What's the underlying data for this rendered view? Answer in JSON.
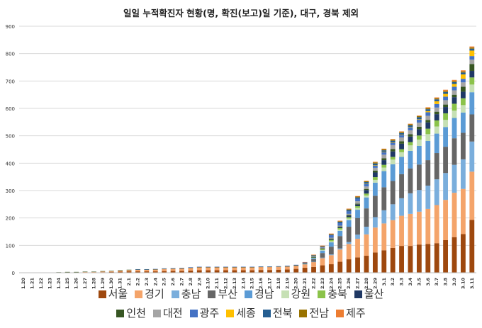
{
  "chart_data": {
    "type": "bar",
    "stacked": true,
    "title": "일일 누적확진자 현황(명, 확진(보고)일 기준), 대구, 경북 제외",
    "xlabel": "",
    "ylabel": "",
    "ylim": [
      0,
      900
    ],
    "yticks": [
      0,
      100,
      200,
      300,
      400,
      500,
      600,
      700,
      800,
      900
    ],
    "grid": true,
    "legend_position": "bottom",
    "categories": [
      "1.20",
      "1.21",
      "1.22",
      "1.23",
      "1.24",
      "1.25",
      "1.26",
      "1.27",
      "1.28",
      "1.29",
      "1.30",
      "1.31",
      "2.1",
      "2.2",
      "2.3",
      "2.4",
      "2.5",
      "2.6",
      "2.7",
      "2.8",
      "2.9",
      "2.10",
      "2.11",
      "2.12",
      "2.13",
      "2.14",
      "2.15",
      "2.16",
      "2.17",
      "2.18",
      "2.19",
      "2.20",
      "2.21",
      "2.22",
      "2.23",
      "2.24",
      "2.25",
      "2.26",
      "2.27",
      "2.28",
      "2.29",
      "3.1",
      "3.2",
      "3.3",
      "3.4",
      "3.5",
      "3.6",
      "3.7",
      "3.8",
      "3.9",
      "3.10",
      "3.11"
    ],
    "series": [
      {
        "name": "서울",
        "color": "#9e480e",
        "values": [
          0,
          0,
          0,
          0,
          1,
          1,
          1,
          1,
          1,
          2,
          3,
          4,
          5,
          5,
          5,
          5,
          6,
          7,
          7,
          8,
          9,
          9,
          9,
          9,
          9,
          9,
          9,
          10,
          10,
          11,
          12,
          14,
          18,
          21,
          27,
          31,
          40,
          49,
          56,
          62,
          74,
          82,
          91,
          98,
          98,
          103,
          105,
          108,
          119,
          130,
          141,
          193
        ]
      },
      {
        "name": "경기",
        "color": "#f4a46a",
        "values": [
          0,
          0,
          0,
          0,
          0,
          1,
          1,
          2,
          2,
          3,
          3,
          4,
          5,
          6,
          6,
          7,
          8,
          8,
          9,
          10,
          11,
          11,
          11,
          11,
          11,
          11,
          11,
          11,
          11,
          11,
          11,
          12,
          13,
          18,
          26,
          33,
          45,
          56,
          68,
          78,
          91,
          98,
          101,
          110,
          117,
          120,
          128,
          139,
          147,
          162,
          165,
          176
        ]
      },
      {
        "name": "충남",
        "color": "#7aaedc",
        "values": [
          0,
          0,
          0,
          0,
          0,
          0,
          0,
          0,
          0,
          0,
          0,
          0,
          0,
          0,
          0,
          0,
          0,
          0,
          0,
          0,
          0,
          0,
          0,
          0,
          0,
          0,
          0,
          0,
          0,
          0,
          0,
          0,
          1,
          1,
          2,
          3,
          4,
          7,
          15,
          28,
          38,
          48,
          58,
          64,
          75,
          79,
          85,
          94,
          98,
          102,
          108,
          110
        ]
      },
      {
        "name": "부산",
        "color": "#666666",
        "values": [
          0,
          0,
          0,
          0,
          0,
          0,
          0,
          0,
          0,
          0,
          0,
          0,
          0,
          0,
          0,
          0,
          0,
          0,
          0,
          0,
          0,
          0,
          0,
          0,
          0,
          0,
          0,
          0,
          0,
          0,
          0,
          0,
          1,
          10,
          17,
          28,
          45,
          56,
          61,
          67,
          78,
          84,
          85,
          88,
          91,
          93,
          93,
          96,
          96,
          97,
          97,
          99
        ]
      },
      {
        "name": "경남",
        "color": "#5b9bd5",
        "values": [
          0,
          0,
          0,
          0,
          0,
          0,
          0,
          0,
          0,
          0,
          0,
          0,
          0,
          0,
          0,
          0,
          0,
          0,
          0,
          0,
          0,
          0,
          0,
          0,
          0,
          0,
          0,
          0,
          0,
          0,
          0,
          0,
          2,
          4,
          9,
          16,
          19,
          24,
          30,
          40,
          48,
          59,
          61,
          63,
          64,
          68,
          70,
          71,
          72,
          74,
          74,
          81
        ]
      },
      {
        "name": "강원",
        "color": "#c6e0b4",
        "values": [
          0,
          0,
          0,
          0,
          0,
          0,
          0,
          0,
          0,
          0,
          0,
          0,
          0,
          0,
          0,
          0,
          0,
          0,
          0,
          0,
          0,
          0,
          0,
          0,
          0,
          0,
          0,
          0,
          0,
          0,
          0,
          0,
          0,
          1,
          2,
          4,
          5,
          6,
          7,
          7,
          10,
          13,
          17,
          17,
          20,
          23,
          25,
          26,
          26,
          27,
          27,
          28
        ]
      },
      {
        "name": "충북",
        "color": "#8bc34a",
        "values": [
          0,
          0,
          0,
          0,
          0,
          0,
          0,
          0,
          0,
          0,
          0,
          0,
          0,
          0,
          0,
          0,
          0,
          0,
          0,
          0,
          0,
          0,
          0,
          0,
          0,
          0,
          0,
          0,
          0,
          0,
          0,
          0,
          0,
          1,
          4,
          5,
          5,
          5,
          6,
          7,
          10,
          10,
          10,
          11,
          12,
          15,
          20,
          22,
          24,
          25,
          25,
          26
        ]
      },
      {
        "name": "울산",
        "color": "#1f3864",
        "values": [
          0,
          0,
          0,
          0,
          0,
          0,
          0,
          0,
          0,
          0,
          0,
          0,
          0,
          0,
          0,
          0,
          0,
          0,
          0,
          0,
          0,
          0,
          0,
          0,
          0,
          0,
          0,
          0,
          0,
          0,
          0,
          0,
          0,
          1,
          1,
          3,
          3,
          5,
          6,
          13,
          17,
          17,
          20,
          20,
          20,
          23,
          23,
          23,
          23,
          24,
          24,
          24
        ]
      },
      {
        "name": "인천",
        "color": "#375623",
        "values": [
          1,
          1,
          1,
          1,
          1,
          1,
          1,
          1,
          1,
          1,
          1,
          1,
          1,
          1,
          1,
          1,
          1,
          1,
          1,
          1,
          1,
          1,
          1,
          1,
          1,
          1,
          1,
          1,
          1,
          1,
          1,
          1,
          1,
          1,
          1,
          2,
          3,
          3,
          3,
          4,
          7,
          7,
          9,
          9,
          9,
          9,
          9,
          9,
          9,
          9,
          18,
          25
        ]
      },
      {
        "name": "대전",
        "color": "#a5a5a5",
        "values": [
          0,
          0,
          0,
          0,
          0,
          0,
          0,
          0,
          0,
          0,
          0,
          0,
          0,
          0,
          0,
          0,
          0,
          0,
          0,
          0,
          0,
          0,
          0,
          0,
          0,
          0,
          0,
          0,
          0,
          0,
          0,
          0,
          0,
          3,
          3,
          3,
          3,
          4,
          9,
          9,
          10,
          13,
          14,
          14,
          14,
          15,
          15,
          15,
          16,
          16,
          16,
          16
        ]
      },
      {
        "name": "광주",
        "color": "#4472c4",
        "values": [
          0,
          0,
          0,
          0,
          0,
          0,
          0,
          0,
          0,
          0,
          0,
          0,
          0,
          1,
          1,
          1,
          1,
          1,
          1,
          1,
          1,
          1,
          1,
          1,
          1,
          1,
          1,
          1,
          1,
          1,
          2,
          2,
          2,
          2,
          3,
          9,
          9,
          9,
          9,
          9,
          9,
          9,
          9,
          9,
          11,
          12,
          13,
          13,
          13,
          13,
          13,
          13
        ]
      },
      {
        "name": "세종",
        "color": "#ffc000",
        "values": [
          0,
          0,
          0,
          0,
          0,
          0,
          0,
          0,
          0,
          0,
          0,
          0,
          0,
          0,
          0,
          0,
          0,
          0,
          0,
          0,
          0,
          0,
          0,
          0,
          0,
          0,
          0,
          0,
          0,
          0,
          0,
          0,
          0,
          0,
          0,
          0,
          0,
          0,
          0,
          1,
          1,
          1,
          1,
          1,
          1,
          1,
          4,
          10,
          10,
          10,
          16,
          20
        ]
      },
      {
        "name": "전북",
        "color": "#255e91",
        "values": [
          0,
          0,
          0,
          0,
          0,
          0,
          0,
          0,
          0,
          0,
          0,
          0,
          0,
          0,
          0,
          0,
          0,
          0,
          0,
          0,
          0,
          0,
          0,
          0,
          0,
          0,
          0,
          0,
          0,
          0,
          0,
          0,
          0,
          1,
          1,
          2,
          5,
          5,
          5,
          6,
          6,
          6,
          6,
          6,
          6,
          7,
          7,
          7,
          7,
          7,
          7,
          7
        ]
      },
      {
        "name": "전남",
        "color": "#997300",
        "values": [
          0,
          0,
          0,
          0,
          0,
          0,
          0,
          0,
          0,
          0,
          0,
          0,
          0,
          0,
          0,
          0,
          0,
          0,
          0,
          0,
          0,
          0,
          0,
          0,
          0,
          0,
          0,
          0,
          0,
          0,
          0,
          0,
          0,
          1,
          1,
          2,
          2,
          3,
          3,
          3,
          4,
          4,
          4,
          4,
          4,
          4,
          4,
          4,
          4,
          4,
          4,
          4
        ]
      },
      {
        "name": "제주",
        "color": "#ed7d31",
        "values": [
          0,
          0,
          0,
          0,
          0,
          0,
          0,
          0,
          0,
          0,
          0,
          0,
          0,
          0,
          0,
          0,
          0,
          0,
          0,
          0,
          0,
          0,
          0,
          0,
          0,
          0,
          0,
          0,
          0,
          0,
          0,
          0,
          1,
          1,
          2,
          2,
          2,
          2,
          2,
          2,
          2,
          2,
          2,
          2,
          2,
          2,
          3,
          3,
          4,
          4,
          4,
          4
        ]
      }
    ]
  }
}
